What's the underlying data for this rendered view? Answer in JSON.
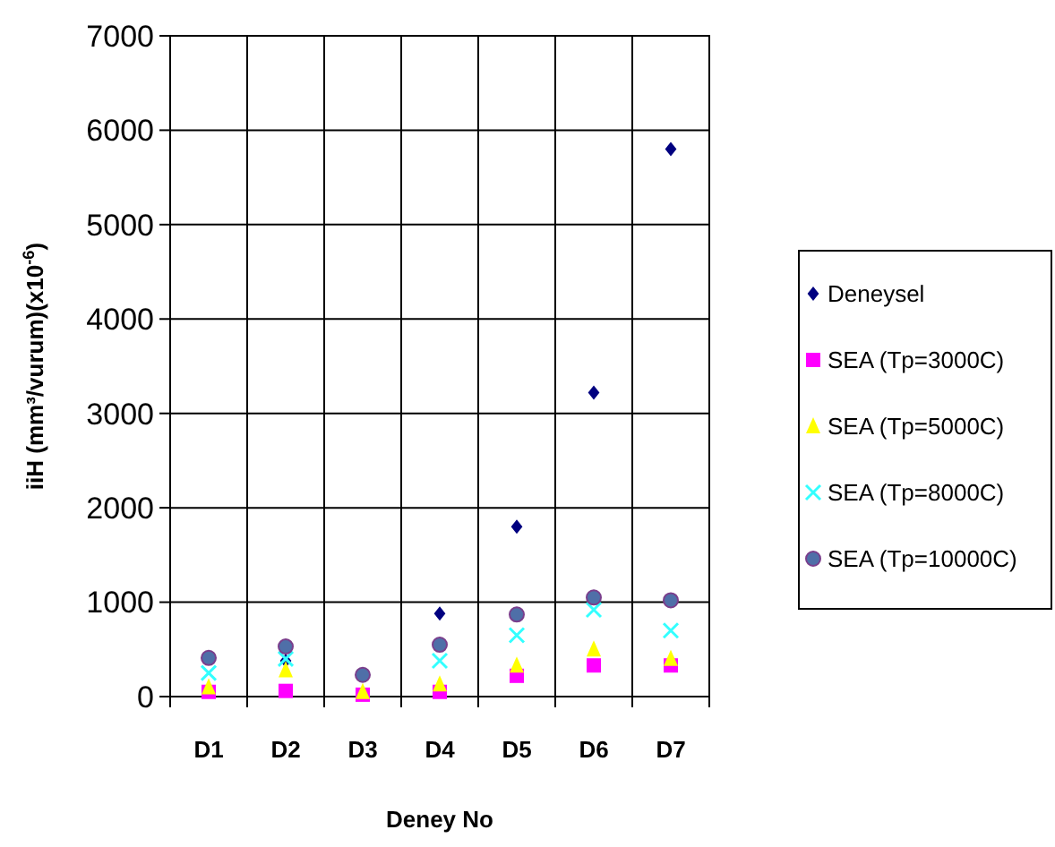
{
  "chart_data": {
    "type": "scatter",
    "xlabel": "Deney No",
    "ylabel": "iiH (mm³/vurum)(x10$^{-6}$)",
    "categories": [
      "D1",
      "D2",
      "D3",
      "D4",
      "D5",
      "D6",
      "D7"
    ],
    "ylim": [
      0,
      7000
    ],
    "yticks": [
      0,
      1000,
      2000,
      3000,
      4000,
      5000,
      6000,
      7000
    ],
    "grid": true,
    "legend": "right",
    "series": [
      {
        "name": "Deneysel",
        "color": "#000080",
        "marker": "diamond",
        "values": [
          null,
          380,
          null,
          880,
          1800,
          3220,
          5800
        ]
      },
      {
        "name": "SEA (Tp=3000C)",
        "color": "#ff00ff",
        "marker": "square",
        "values": [
          50,
          60,
          20,
          50,
          220,
          330,
          330
        ]
      },
      {
        "name": "SEA (Tp=5000C)",
        "color": "#ffff00",
        "marker": "triangle",
        "values": [
          100,
          280,
          50,
          130,
          330,
          500,
          400
        ]
      },
      {
        "name": "SEA (Tp=8000C)",
        "color": "#33ffff",
        "marker": "cross",
        "values": [
          250,
          400,
          null,
          380,
          650,
          920,
          700
        ]
      },
      {
        "name": "SEA (Tp=10000C)",
        "color": "#4f6fa8",
        "marker": "circle",
        "values": [
          410,
          530,
          230,
          550,
          870,
          1050,
          1020
        ]
      }
    ]
  }
}
